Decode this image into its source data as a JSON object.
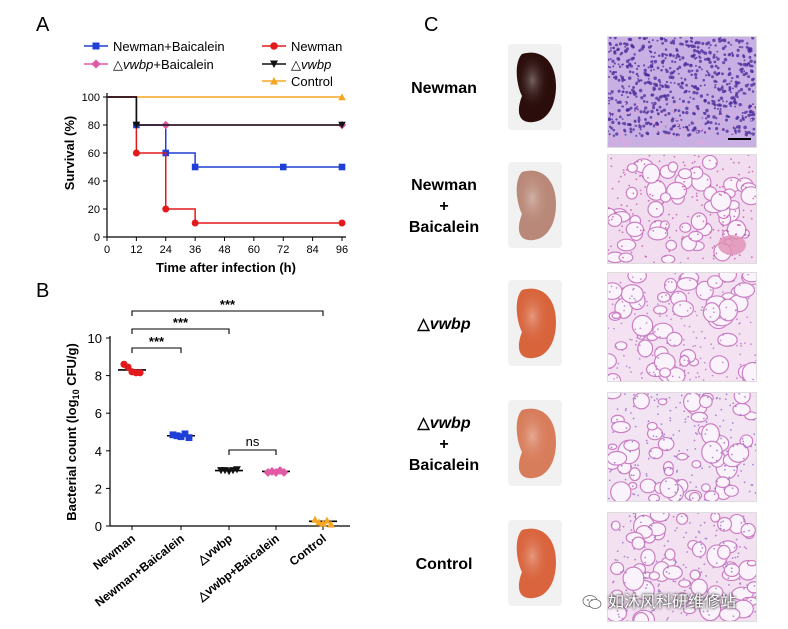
{
  "panels": {
    "a": "A",
    "b": "B",
    "c": "C"
  },
  "survival": {
    "legend": [
      {
        "label": "Newman+Baicalein",
        "color": "#1f3fd6",
        "marker": "square"
      },
      {
        "label": "Newman",
        "color": "#e3191b",
        "marker": "circle"
      },
      {
        "label_prefix": "△",
        "label_italic": "vwbp",
        "label_suffix": "+Baicalein",
        "color": "#e05aa6",
        "marker": "diamond"
      },
      {
        "label_prefix": "△",
        "label_italic": "vwbp",
        "label_suffix": "",
        "color": "#111111",
        "marker": "triangle-down"
      },
      {
        "label": "Control",
        "color": "#f5a623",
        "marker": "triangle-up"
      }
    ]
  },
  "bacterial": {
    "categories": [
      "Newman",
      "Newman+Baicalein",
      "△vwbp",
      "△vwbp+Baicalein",
      "Control"
    ],
    "sig": [
      "***",
      "***",
      "***",
      "ns"
    ]
  },
  "chart_data": [
    {
      "type": "line",
      "subtype": "kaplan-meier step",
      "xlabel": "Time after infection (h)",
      "ylabel": "Survival (%)",
      "xlim": [
        0,
        96
      ],
      "ylim": [
        0,
        100
      ],
      "xticks": [
        0,
        12,
        24,
        36,
        48,
        60,
        72,
        84,
        96
      ],
      "yticks": [
        0,
        20,
        40,
        60,
        80,
        100
      ],
      "grid": false,
      "legend_position": "top",
      "series": [
        {
          "name": "Newman+Baicalein",
          "color": "#1f3fd6",
          "steps": [
            [
              0,
              100
            ],
            [
              12,
              80
            ],
            [
              24,
              60
            ],
            [
              36,
              50
            ],
            [
              96,
              50
            ]
          ],
          "markers": [
            [
              12,
              80
            ],
            [
              24,
              60
            ],
            [
              36,
              50
            ],
            [
              72,
              50
            ],
            [
              96,
              50
            ]
          ]
        },
        {
          "name": "Newman",
          "color": "#e3191b",
          "steps": [
            [
              0,
              100
            ],
            [
              12,
              60
            ],
            [
              24,
              20
            ],
            [
              36,
              10
            ],
            [
              96,
              10
            ]
          ],
          "markers": [
            [
              12,
              60
            ],
            [
              24,
              20
            ],
            [
              36,
              10
            ],
            [
              96,
              10
            ]
          ]
        },
        {
          "name": "△vwbp+Baicalein",
          "color": "#e05aa6",
          "steps": [
            [
              0,
              100
            ],
            [
              12,
              80
            ],
            [
              96,
              80
            ]
          ],
          "markers": [
            [
              24,
              80
            ],
            [
              96,
              80
            ]
          ]
        },
        {
          "name": "△vwbp",
          "color": "#111111",
          "steps": [
            [
              0,
              100
            ],
            [
              12,
              80
            ],
            [
              96,
              80
            ]
          ],
          "markers": [
            [
              12,
              80
            ],
            [
              96,
              80
            ]
          ]
        },
        {
          "name": "Control",
          "color": "#f5a623",
          "steps": [
            [
              0,
              100
            ],
            [
              96,
              100
            ]
          ],
          "markers": [
            [
              96,
              100
            ]
          ]
        }
      ]
    },
    {
      "type": "scatter",
      "subtype": "dot plot with mean",
      "ylabel": "Bacterial count (log10 CFU/g)",
      "ylim": [
        0,
        10
      ],
      "yticks": [
        0,
        2,
        4,
        6,
        8,
        10
      ],
      "categories": [
        "Newman",
        "Newman+Baicalein",
        "△vwbp",
        "△vwbp+Baicalein",
        "Control"
      ],
      "means": [
        8.3,
        4.8,
        2.95,
        2.9,
        0.25
      ],
      "colors": [
        "#e3191b",
        "#1f3fd6",
        "#111111",
        "#e05aa6",
        "#f5a623"
      ],
      "markers": [
        "circle",
        "square",
        "triangle-down",
        "diamond",
        "triangle-up"
      ],
      "points": [
        [
          8.6,
          8.45,
          8.2,
          8.15,
          8.15
        ],
        [
          4.85,
          4.8,
          4.75,
          4.9,
          4.7
        ],
        [
          2.95,
          2.95,
          2.9,
          2.95,
          3.0
        ],
        [
          2.85,
          2.9,
          2.85,
          2.95,
          2.85
        ],
        [
          0.35,
          0.2,
          0.15,
          0.3,
          0.1
        ]
      ],
      "comparisons": [
        {
          "from": "Newman",
          "to": "Newman+Baicalein",
          "label": "***"
        },
        {
          "from": "Newman",
          "to": "△vwbp",
          "label": "***"
        },
        {
          "from": "Newman",
          "to": "Control",
          "label": "***"
        },
        {
          "from": "△vwbp",
          "to": "△vwbp+Baicalein",
          "label": "ns"
        }
      ]
    }
  ],
  "histology": {
    "rows": [
      {
        "label_lines": [
          "Newman"
        ],
        "organ_color": "#2b0e0c",
        "tissue": "#d8b6dc",
        "dots": "#4a2a9a",
        "dense": true
      },
      {
        "label_lines": [
          "Newman",
          "+",
          "Baicalein"
        ],
        "organ_color": "#b98878",
        "tissue": "#f2dcef",
        "dots": "#c05aa8",
        "dense": false
      },
      {
        "label_prefix": "△",
        "label_italic": "vwbp",
        "organ_color": "#d8643c",
        "tissue": "#f4e2f2",
        "dots": "#b779c8",
        "dense": false
      },
      {
        "label_prefix": "△",
        "label_italic": "vwbp",
        "label_lines_after": [
          "+",
          "Baicalein"
        ],
        "organ_color": "#d87d5c",
        "tissue": "#f2e4f2",
        "dots": "#9a6ccc",
        "dense": false
      },
      {
        "label_lines": [
          "Control"
        ],
        "organ_color": "#d9643e",
        "tissue": "#f3e0f1",
        "dots": "#a16fc8",
        "dense": false
      }
    ]
  },
  "watermark": "如沐风科研维修站"
}
